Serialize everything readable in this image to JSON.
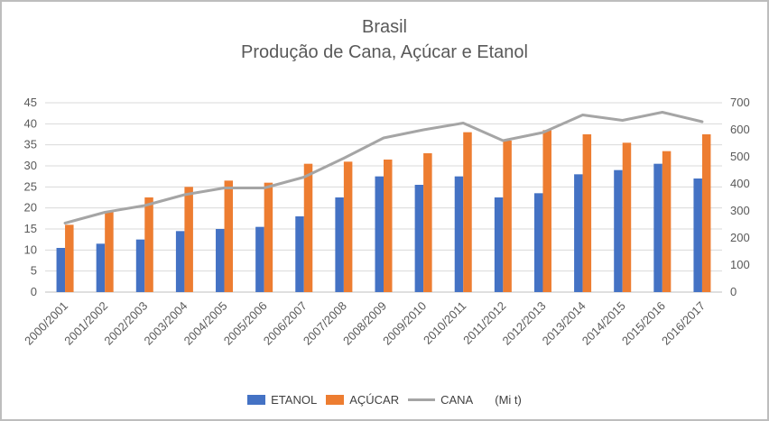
{
  "title": {
    "line1": "Brasil",
    "line2": "Produção de Cana, Açúcar e Etanol"
  },
  "legend": {
    "etanol": "ETANOL",
    "acucar": "AÇÚCAR",
    "cana": "CANA",
    "unit": "(Mi t)"
  },
  "colors": {
    "etanol": "#4472C4",
    "acucar": "#ED7D31",
    "cana": "#A5A5A5",
    "grid": "#D9D9D9",
    "axis": "#BFBFBF",
    "text": "#595959"
  },
  "chart_data": {
    "type": "bar",
    "subtype": "grouped-bars-with-line",
    "title": "Brasil — Produção de Cana, Açúcar e Etanol",
    "grid": true,
    "legend_position": "bottom",
    "categories": [
      "2000/2001",
      "2001/2002",
      "2002/2003",
      "2003/2004",
      "2004/2005",
      "2005/2006",
      "2006/2007",
      "2007/2008",
      "2008/2009",
      "2009/2010",
      "2010/2011",
      "2011/2012",
      "2012/2013",
      "2013/2014",
      "2014/2015",
      "2015/2016",
      "2016/2017"
    ],
    "series": [
      {
        "name": "ETANOL",
        "type": "bar",
        "axis": "left",
        "color": "#4472C4",
        "values": [
          10.5,
          11.5,
          12.5,
          14.5,
          15,
          15.5,
          18,
          22.5,
          27.5,
          25.5,
          27.5,
          22.5,
          23.5,
          28,
          29,
          30.5,
          27
        ]
      },
      {
        "name": "AÇÚCAR",
        "type": "bar",
        "axis": "left",
        "color": "#ED7D31",
        "values": [
          16,
          19,
          22.5,
          25,
          26.5,
          26,
          30.5,
          31,
          31.5,
          33,
          38,
          36,
          38.5,
          37.5,
          35.5,
          33.5,
          37.5
        ]
      },
      {
        "name": "CANA",
        "type": "line",
        "axis": "right",
        "unit": "Mi t",
        "color": "#A5A5A5",
        "values": [
          255,
          295,
          320,
          360,
          385,
          385,
          425,
          495,
          570,
          600,
          625,
          560,
          590,
          655,
          635,
          665,
          630
        ]
      }
    ],
    "left_axis": {
      "min": 0,
      "max": 45,
      "step": 5
    },
    "right_axis": {
      "min": 0,
      "max": 700,
      "step": 100
    }
  }
}
